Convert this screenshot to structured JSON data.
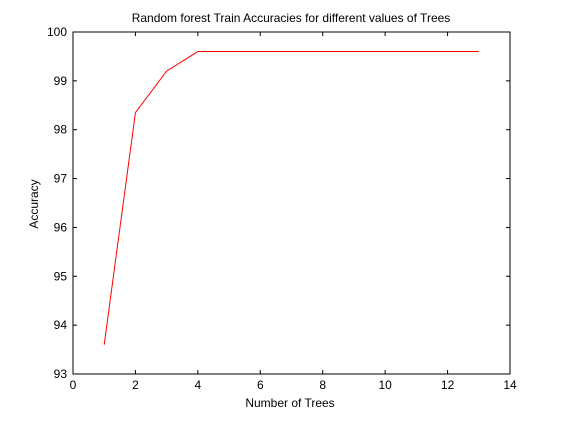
{
  "chart_data": {
    "type": "line",
    "title": "Random forest Train Accuracies for different values of Trees",
    "xlabel": "Number of Trees",
    "ylabel": "Accuracy",
    "xlim": [
      0,
      14
    ],
    "ylim": [
      93,
      100
    ],
    "xticks": [
      0,
      2,
      4,
      6,
      8,
      10,
      12,
      14
    ],
    "yticks": [
      93,
      94,
      95,
      96,
      97,
      98,
      99,
      100
    ],
    "grid": false,
    "series": [
      {
        "color": "#ff0000",
        "x": [
          1,
          2,
          3,
          4,
          5,
          6,
          7,
          8,
          9,
          10,
          11,
          12,
          13
        ],
        "y": [
          93.6,
          98.35,
          99.2,
          99.6,
          99.6,
          99.6,
          99.6,
          99.6,
          99.6,
          99.6,
          99.6,
          99.6,
          99.6
        ]
      }
    ]
  }
}
